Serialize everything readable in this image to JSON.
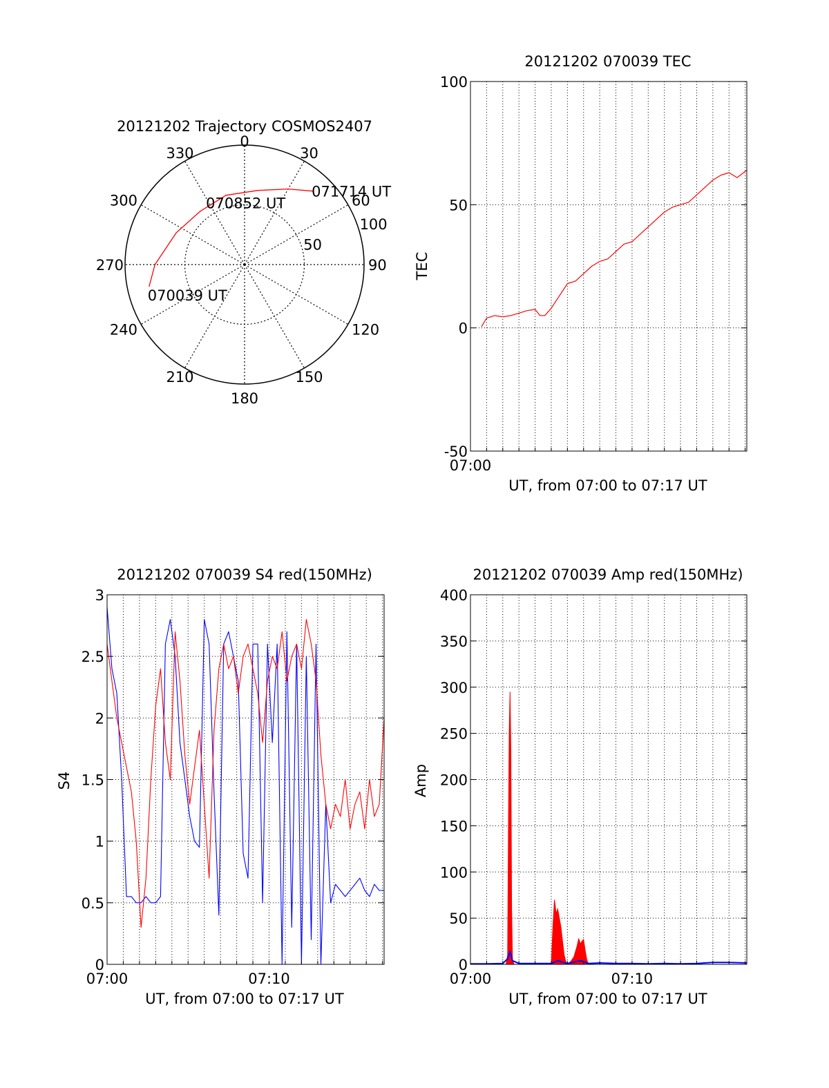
{
  "colors": {
    "red": "#ff0000",
    "blue": "#0000ff",
    "axes": "#000000",
    "background": "#ffffff"
  },
  "chart_data": [
    {
      "type": "polar",
      "title": "20121202 Trajectory COSMOS2407",
      "azimuth_labels": [
        "0",
        "30",
        "60",
        "90",
        "120",
        "150",
        "180",
        "210",
        "240",
        "270",
        "300",
        "330"
      ],
      "azimuth_values": [
        0,
        30,
        60,
        90,
        120,
        150,
        180,
        210,
        240,
        270,
        300,
        330
      ],
      "radial_labels": [
        "50",
        "100"
      ],
      "radial_values": [
        50,
        100
      ],
      "radial_max": 100,
      "grid": true,
      "series": [
        {
          "color": "#ff0000",
          "points": [
            {
              "azimuth": 257,
              "radius": 82
            },
            {
              "azimuth": 270,
              "radius": 75
            },
            {
              "azimuth": 295,
              "radius": 63
            },
            {
              "azimuth": 320,
              "radius": 58
            },
            {
              "azimuth": 345,
              "radius": 60
            },
            {
              "azimuth": 10,
              "radius": 63
            },
            {
              "azimuth": 30,
              "radius": 73
            },
            {
              "azimuth": 43,
              "radius": 84
            }
          ]
        }
      ],
      "annotations": [
        {
          "text": "070039 UT",
          "azimuth": 257,
          "radius": 82
        },
        {
          "text": "070852 UT",
          "azimuth": 355,
          "radius": 52
        },
        {
          "text": "071714 UT",
          "azimuth": 43,
          "radius": 84
        }
      ]
    },
    {
      "type": "line",
      "title": "20121202 070039 TEC",
      "xlabel": "UT, from 07:00 to 07:17 UT",
      "ylabel": "TEC",
      "xlim": [
        0,
        17.1
      ],
      "ylim": [
        -50,
        100
      ],
      "xticks": [
        {
          "value": 0,
          "label": "07:00"
        }
      ],
      "yticks": [
        {
          "value": -50,
          "label": "-50"
        },
        {
          "value": 0,
          "label": "0"
        },
        {
          "value": 50,
          "label": "50"
        },
        {
          "value": 100,
          "label": "100"
        }
      ],
      "grid": true,
      "series": [
        {
          "color": "#ff0000",
          "x": [
            0.68,
            1,
            1.5,
            2,
            2.5,
            3,
            3.5,
            4,
            4.3,
            4.6,
            5,
            5.5,
            6,
            6.5,
            7,
            7.5,
            8,
            8.5,
            9,
            9.5,
            10,
            10.5,
            11,
            11.5,
            12,
            12.5,
            13,
            13.5,
            14,
            14.5,
            15,
            15.5,
            16,
            16.5,
            17.1
          ],
          "y": [
            0.5,
            4,
            5,
            4.5,
            5,
            6,
            7,
            7.5,
            5,
            5,
            8,
            13,
            18,
            19,
            22,
            25,
            27,
            28,
            31,
            34,
            35,
            38,
            41,
            44,
            47,
            49,
            50,
            51,
            54,
            57,
            60,
            62,
            63,
            61,
            64
          ]
        }
      ]
    },
    {
      "type": "line",
      "title": "20121202 070039 S4 red(150MHz)",
      "xlabel": "UT, from 07:00 to 07:17 UT",
      "ylabel": "S4",
      "xlim": [
        0,
        17.1
      ],
      "ylim": [
        0,
        3
      ],
      "xticks": [
        {
          "value": 0,
          "label": "07:00"
        },
        {
          "value": 10,
          "label": "07:10"
        }
      ],
      "yticks": [
        {
          "value": 0,
          "label": "0"
        },
        {
          "value": 0.5,
          "label": "0.5"
        },
        {
          "value": 1,
          "label": "1"
        },
        {
          "value": 1.5,
          "label": "1.5"
        },
        {
          "value": 2,
          "label": "2"
        },
        {
          "value": 2.5,
          "label": "2.5"
        },
        {
          "value": 3,
          "label": "3"
        }
      ],
      "grid": true,
      "series": [
        {
          "color": "#0000ff",
          "x": [
            0,
            0.3,
            0.6,
            0.9,
            1.2,
            1.5,
            1.8,
            2.1,
            2.4,
            2.7,
            3.0,
            3.3,
            3.6,
            3.9,
            4.2,
            4.5,
            4.8,
            5.1,
            5.4,
            5.7,
            6.0,
            6.3,
            6.6,
            6.9,
            7.2,
            7.5,
            7.8,
            8.1,
            8.4,
            8.7,
            9.0,
            9.3,
            9.6,
            9.9,
            10.2,
            10.5,
            10.8,
            11.1,
            11.4,
            11.7,
            12.0,
            12.3,
            12.6,
            12.9,
            13.2,
            13.5,
            13.8,
            14.1,
            14.4,
            14.7,
            15.0,
            15.3,
            15.6,
            15.9,
            16.2,
            16.5,
            16.8,
            17.1
          ],
          "y": [
            2.9,
            2.4,
            2.2,
            1.5,
            0.55,
            0.55,
            0.5,
            0.5,
            0.55,
            0.5,
            0.5,
            0.55,
            2.6,
            2.8,
            2.5,
            1.8,
            1.5,
            1.2,
            1.0,
            0.95,
            2.8,
            2.6,
            1.4,
            0.4,
            2.6,
            2.7,
            2.5,
            2.3,
            0.9,
            0.7,
            2.6,
            2.6,
            0.5,
            2.6,
            1.8,
            2.6,
            0.0,
            2.7,
            0.3,
            2.6,
            0.0,
            2.5,
            0.2,
            2.6,
            0.0,
            1.3,
            0.5,
            0.65,
            0.6,
            0.55,
            0.6,
            0.65,
            0.7,
            0.6,
            0.55,
            0.65,
            0.6,
            0.6
          ]
        },
        {
          "color": "#ff0000",
          "x": [
            0,
            0.3,
            0.6,
            0.9,
            1.2,
            1.5,
            1.8,
            2.1,
            2.4,
            2.7,
            3.0,
            3.3,
            3.6,
            3.9,
            4.2,
            4.5,
            4.8,
            5.1,
            5.4,
            5.7,
            6.0,
            6.3,
            6.6,
            6.9,
            7.2,
            7.5,
            7.8,
            8.1,
            8.4,
            8.7,
            9.0,
            9.3,
            9.6,
            9.9,
            10.2,
            10.5,
            10.8,
            11.1,
            11.4,
            11.7,
            12.0,
            12.3,
            12.6,
            12.9,
            13.2,
            13.5,
            13.8,
            14.1,
            14.4,
            14.7,
            15.0,
            15.3,
            15.6,
            15.9,
            16.2,
            16.5,
            16.8,
            17.1
          ],
          "y": [
            2.6,
            2.3,
            2.0,
            1.8,
            1.6,
            1.4,
            1.0,
            0.3,
            0.7,
            1.5,
            2.1,
            2.4,
            1.8,
            1.5,
            2.7,
            2.3,
            1.7,
            1.3,
            1.6,
            1.9,
            1.3,
            0.7,
            1.9,
            2.4,
            2.6,
            2.4,
            2.5,
            2.2,
            2.5,
            2.6,
            2.4,
            2.2,
            1.8,
            2.3,
            2.5,
            2.4,
            2.7,
            2.3,
            2.5,
            2.6,
            2.4,
            2.8,
            2.6,
            2.3,
            1.7,
            1.3,
            1.1,
            1.3,
            1.2,
            1.5,
            1.1,
            1.3,
            1.4,
            1.1,
            1.5,
            1.2,
            1.3,
            2.0
          ]
        }
      ]
    },
    {
      "type": "area",
      "title": "20121202 070039 Amp red(150MHz)",
      "xlabel": "UT, from 07:00 to 07:17 UT",
      "ylabel": "Amp",
      "xlim": [
        0,
        17.1
      ],
      "ylim": [
        0,
        400
      ],
      "xticks": [
        {
          "value": 0,
          "label": "07:00"
        },
        {
          "value": 10,
          "label": "07:10"
        }
      ],
      "yticks": [
        {
          "value": 0,
          "label": "0"
        },
        {
          "value": 50,
          "label": "50"
        },
        {
          "value": 100,
          "label": "100"
        },
        {
          "value": 150,
          "label": "150"
        },
        {
          "value": 200,
          "label": "200"
        },
        {
          "value": 250,
          "label": "250"
        },
        {
          "value": 300,
          "label": "300"
        },
        {
          "value": 350,
          "label": "350"
        },
        {
          "value": 400,
          "label": "400"
        }
      ],
      "grid": true,
      "series": [
        {
          "color": "#ff0000",
          "x": [
            0,
            2.2,
            2.3,
            2.35,
            2.4,
            2.45,
            2.5,
            2.55,
            2.6,
            2.7,
            5.0,
            5.1,
            5.2,
            5.3,
            5.4,
            5.5,
            5.6,
            5.7,
            5.8,
            5.9,
            6.0,
            6.2,
            6.4,
            6.6,
            6.7,
            6.8,
            6.9,
            7.0,
            7.1,
            7.2,
            7.3,
            17.1
          ],
          "y": [
            0,
            0,
            10,
            150,
            250,
            295,
            230,
            60,
            5,
            0,
            0,
            40,
            70,
            55,
            60,
            50,
            40,
            25,
            10,
            3,
            0,
            3,
            8,
            20,
            28,
            22,
            25,
            27,
            15,
            5,
            0,
            0
          ]
        },
        {
          "color": "#0000ff",
          "x": [
            0,
            1.0,
            2.0,
            2.3,
            2.45,
            2.6,
            3.0,
            4.0,
            5.0,
            5.4,
            6.0,
            6.8,
            7.3,
            8.0,
            9.0,
            10.0,
            11.0,
            12.0,
            13.0,
            14.0,
            15.0,
            16.0,
            17.1
          ],
          "y": [
            0.5,
            0.5,
            1,
            6,
            14,
            4,
            1,
            1,
            1,
            4,
            1,
            4,
            1,
            1.5,
            1,
            1,
            0.5,
            1,
            0.5,
            1,
            2,
            2,
            1.5
          ]
        }
      ]
    }
  ]
}
